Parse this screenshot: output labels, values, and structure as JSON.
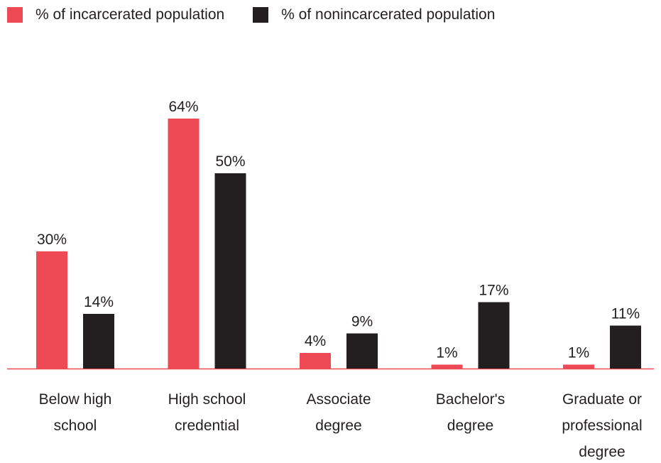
{
  "colors": {
    "incarcerated": "#ee4a55",
    "nonincarcerated": "#231f20",
    "baseline": "#ee4a55"
  },
  "chart_data": {
    "type": "bar",
    "categories": [
      [
        "Below high",
        "school"
      ],
      [
        "High school",
        "credential"
      ],
      [
        "Associate",
        "degree"
      ],
      [
        "Bachelor's",
        "degree"
      ],
      [
        "Graduate or",
        "professional",
        "degree"
      ]
    ],
    "series": [
      {
        "name": "% of incarcerated population",
        "values": [
          30,
          64,
          4,
          1,
          1
        ],
        "labels": [
          "30%",
          "64%",
          "4%",
          "1%",
          "1%"
        ]
      },
      {
        "name": "% of nonincarcerated population",
        "values": [
          14,
          50,
          9,
          17,
          11
        ],
        "labels": [
          "14%",
          "50%",
          "9%",
          "17%",
          "11%"
        ]
      }
    ],
    "ylim": [
      0,
      64
    ],
    "grid": false,
    "legend": "top-left"
  }
}
